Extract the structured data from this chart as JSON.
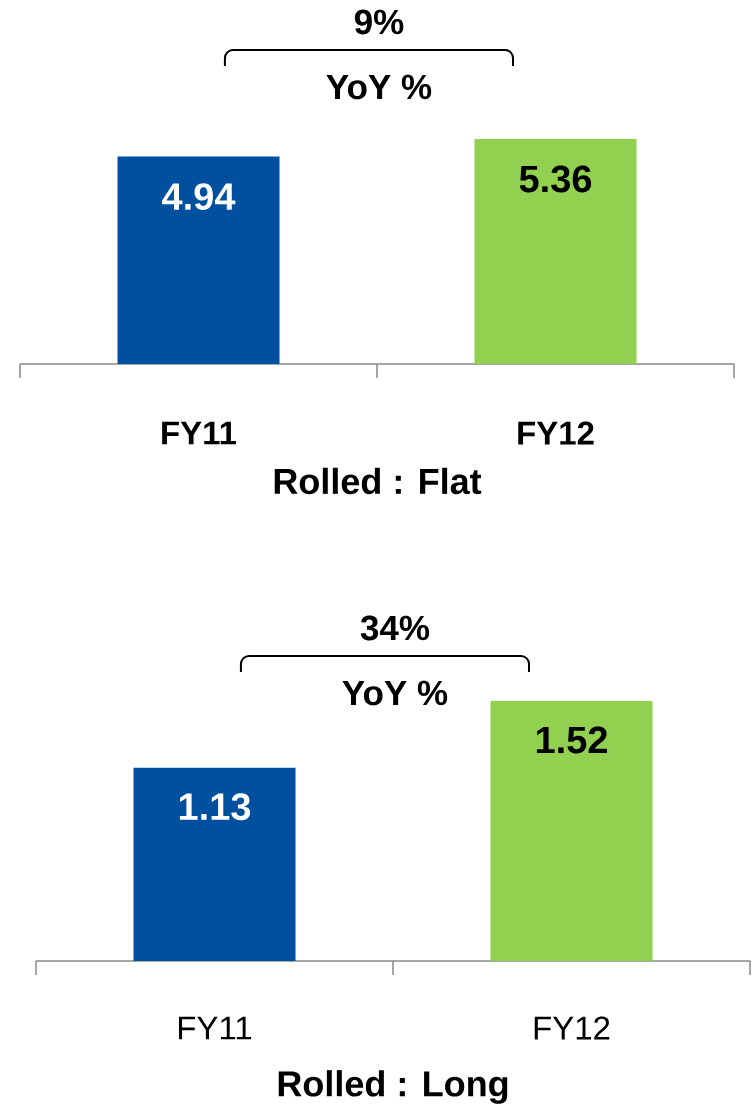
{
  "chart_data": [
    {
      "type": "bar",
      "categories": [
        "FY11",
        "FY12"
      ],
      "values": [
        4.94,
        5.36
      ],
      "colors": [
        "#0050a0",
        "#92d050"
      ],
      "data_labels": true,
      "xlabel": "Rolled : Flat",
      "annotations": [
        "9%",
        "YoY %"
      ]
    },
    {
      "type": "bar",
      "categories": [
        "FY11",
        "FY12"
      ],
      "values": [
        1.13,
        1.52
      ],
      "colors": [
        "#0050a0",
        "#92d050"
      ],
      "data_labels": true,
      "xlabel": "Rolled : Long",
      "annotations": [
        "34%",
        "YoY %"
      ]
    }
  ]
}
